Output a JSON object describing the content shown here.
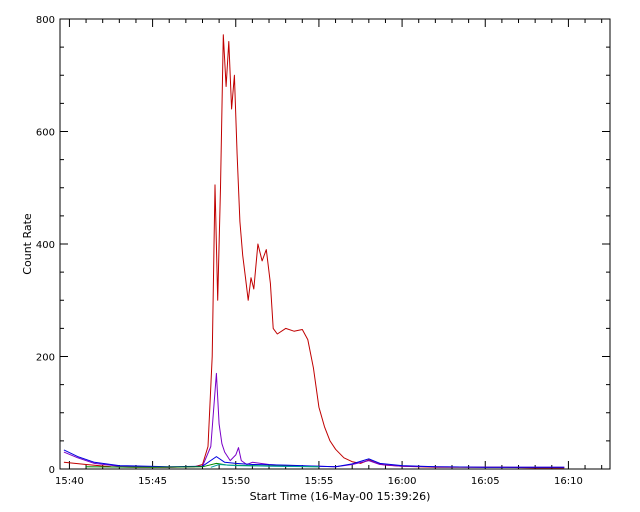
{
  "chart_data": {
    "type": "line",
    "title": "",
    "xlabel": "Start Time (16-May-00 15:39:26)",
    "ylabel": "Count Rate",
    "x_unit": "time (HH:MM)",
    "xlim": [
      "15:39:26",
      "16:12:30"
    ],
    "ylim": [
      0,
      800
    ],
    "x_ticks": [
      "15:40",
      "15:45",
      "15:50",
      "15:55",
      "16:00",
      "16:05",
      "16:10"
    ],
    "y_ticks": [
      0,
      200,
      400,
      600,
      800
    ],
    "grid": false,
    "legend": "none",
    "series": [
      {
        "color": "#c00000",
        "points": [
          [
            "15:39:40",
            12
          ],
          [
            "15:41:00",
            8
          ],
          [
            "15:42:30",
            4
          ],
          [
            "15:44:00",
            3
          ],
          [
            "15:46:00",
            3
          ],
          [
            "15:47:30",
            4
          ],
          [
            "15:48:00",
            8
          ],
          [
            "15:48:20",
            40
          ],
          [
            "15:48:35",
            200
          ],
          [
            "15:48:45",
            505
          ],
          [
            "15:48:55",
            300
          ],
          [
            "15:49:05",
            500
          ],
          [
            "15:49:15",
            772
          ],
          [
            "15:49:25",
            680
          ],
          [
            "15:49:35",
            760
          ],
          [
            "15:49:45",
            640
          ],
          [
            "15:49:55",
            700
          ],
          [
            "15:50:05",
            560
          ],
          [
            "15:50:15",
            440
          ],
          [
            "15:50:25",
            380
          ],
          [
            "15:50:35",
            340
          ],
          [
            "15:50:45",
            300
          ],
          [
            "15:50:55",
            340
          ],
          [
            "15:51:05",
            320
          ],
          [
            "15:51:20",
            400
          ],
          [
            "15:51:35",
            370
          ],
          [
            "15:51:50",
            390
          ],
          [
            "15:52:05",
            330
          ],
          [
            "15:52:15",
            250
          ],
          [
            "15:52:30",
            240
          ],
          [
            "15:53:00",
            250
          ],
          [
            "15:53:30",
            245
          ],
          [
            "15:54:00",
            248
          ],
          [
            "15:54:20",
            230
          ],
          [
            "15:54:40",
            180
          ],
          [
            "15:55:00",
            110
          ],
          [
            "15:55:20",
            75
          ],
          [
            "15:55:40",
            50
          ],
          [
            "15:56:00",
            35
          ],
          [
            "15:56:30",
            20
          ],
          [
            "15:57:00",
            13
          ],
          [
            "15:57:30",
            10
          ],
          [
            "15:58:00",
            16
          ],
          [
            "15:58:30",
            10
          ],
          [
            "15:59:00",
            7
          ],
          [
            "16:00:00",
            5
          ],
          [
            "16:02:00",
            3
          ],
          [
            "16:04:00",
            3
          ],
          [
            "16:06:00",
            3
          ],
          [
            "16:08:00",
            2
          ],
          [
            "16:09:45",
            2
          ]
        ]
      },
      {
        "color": "#7a00c8",
        "points": [
          [
            "15:39:40",
            30
          ],
          [
            "15:40:30",
            20
          ],
          [
            "15:41:30",
            10
          ],
          [
            "15:43:00",
            5
          ],
          [
            "15:46:00",
            3
          ],
          [
            "15:48:00",
            5
          ],
          [
            "15:48:30",
            40
          ],
          [
            "15:48:50",
            170
          ],
          [
            "15:49:00",
            80
          ],
          [
            "15:49:10",
            45
          ],
          [
            "15:49:20",
            30
          ],
          [
            "15:49:40",
            15
          ],
          [
            "15:50:00",
            25
          ],
          [
            "15:50:10",
            38
          ],
          [
            "15:50:20",
            15
          ],
          [
            "15:50:40",
            8
          ],
          [
            "15:51:00",
            12
          ],
          [
            "15:52:00",
            8
          ],
          [
            "15:53:00",
            6
          ],
          [
            "15:55:00",
            5
          ],
          [
            "15:56:00",
            4
          ],
          [
            "15:57:00",
            8
          ],
          [
            "15:58:00",
            15
          ],
          [
            "15:58:40",
            8
          ],
          [
            "16:00:00",
            5
          ],
          [
            "16:02:00",
            4
          ],
          [
            "16:05:00",
            3
          ],
          [
            "16:09:45",
            3
          ]
        ]
      },
      {
        "color": "#0000e0",
        "points": [
          [
            "15:39:40",
            34
          ],
          [
            "15:40:30",
            22
          ],
          [
            "15:41:30",
            12
          ],
          [
            "15:43:00",
            6
          ],
          [
            "15:46:00",
            4
          ],
          [
            "15:48:00",
            5
          ],
          [
            "15:48:50",
            22
          ],
          [
            "15:49:20",
            12
          ],
          [
            "15:50:00",
            10
          ],
          [
            "15:51:00",
            8
          ],
          [
            "15:53:00",
            7
          ],
          [
            "15:55:00",
            5
          ],
          [
            "15:56:00",
            4
          ],
          [
            "15:57:00",
            9
          ],
          [
            "15:58:00",
            18
          ],
          [
            "15:58:40",
            10
          ],
          [
            "16:00:00",
            6
          ],
          [
            "16:02:00",
            4
          ],
          [
            "16:05:00",
            3
          ],
          [
            "16:09:45",
            3
          ]
        ]
      },
      {
        "color": "#008800",
        "points": [
          [
            "15:41:00",
            4
          ],
          [
            "15:45:00",
            3
          ],
          [
            "15:48:00",
            4
          ],
          [
            "15:48:50",
            10
          ],
          [
            "15:49:30",
            7
          ],
          [
            "15:51:00",
            6
          ],
          [
            "15:53:00",
            5
          ],
          [
            "15:55:00",
            4
          ]
        ]
      },
      {
        "color": "#00a0a0",
        "points": [
          [
            "15:48:30",
            3
          ],
          [
            "15:49:00",
            8
          ],
          [
            "15:50:00",
            6
          ],
          [
            "15:52:00",
            5
          ],
          [
            "15:55:00",
            4
          ]
        ]
      }
    ]
  }
}
